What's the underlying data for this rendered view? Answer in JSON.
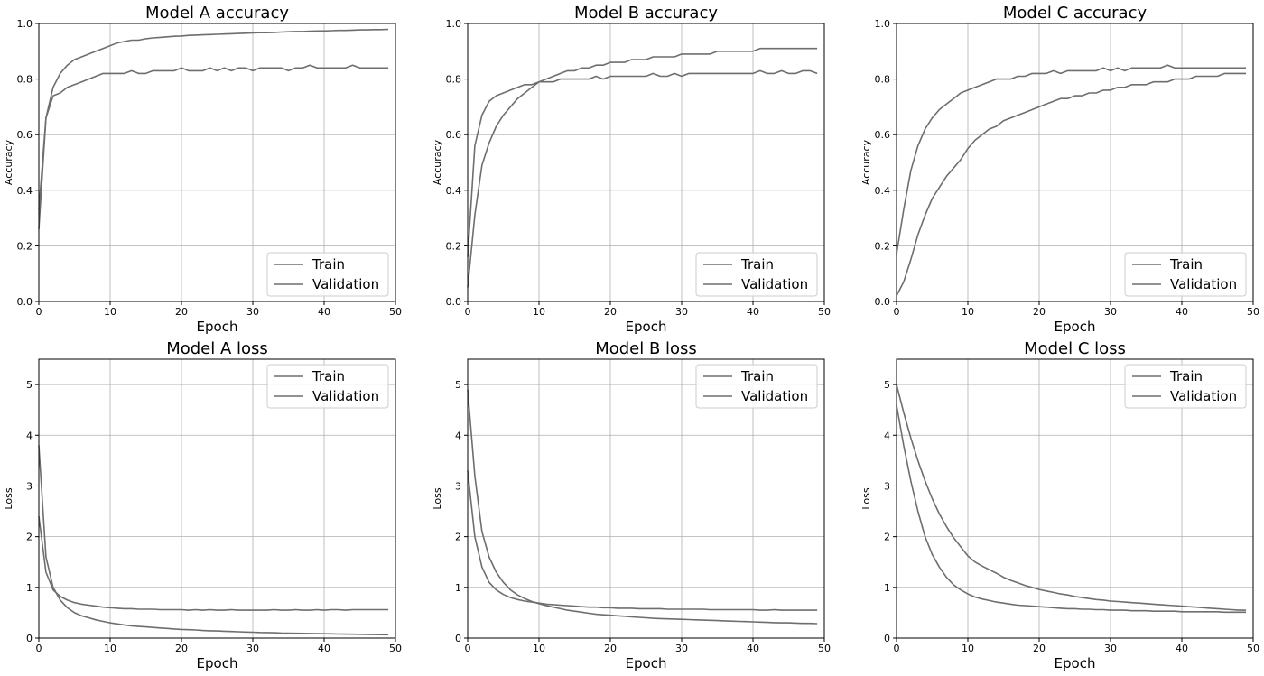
{
  "figure": {
    "layout": "2x3 grid of line charts",
    "line_color": "#6e6e6e",
    "grid_color": "#b0b0b0"
  },
  "chart_data": [
    {
      "type": "line",
      "title": "Model A accuracy",
      "xlabel": "Epoch",
      "ylabel": "Accuracy",
      "xlim": [
        0,
        50
      ],
      "ylim": [
        0,
        1.0
      ],
      "xticks": [
        0,
        10,
        20,
        30,
        40,
        50
      ],
      "yticks": [
        0.0,
        0.2,
        0.4,
        0.6,
        0.8,
        1.0
      ],
      "tick_decimals": 1,
      "grid": true,
      "legend": {
        "position": "bottom-right",
        "entries": [
          "Train",
          "Validation"
        ]
      },
      "series": [
        {
          "name": "Train",
          "x_start": 0,
          "x_step": 1,
          "values": [
            0.26,
            0.66,
            0.77,
            0.82,
            0.85,
            0.87,
            0.88,
            0.89,
            0.9,
            0.91,
            0.92,
            0.93,
            0.935,
            0.94,
            0.94,
            0.945,
            0.948,
            0.95,
            0.952,
            0.954,
            0.955,
            0.957,
            0.958,
            0.959,
            0.96,
            0.961,
            0.962,
            0.963,
            0.964,
            0.965,
            0.966,
            0.967,
            0.967,
            0.968,
            0.969,
            0.97,
            0.971,
            0.971,
            0.972,
            0.973,
            0.973,
            0.974,
            0.975,
            0.975,
            0.976,
            0.977,
            0.977,
            0.978,
            0.978,
            0.979
          ]
        },
        {
          "name": "Validation",
          "x_start": 0,
          "x_step": 1,
          "values": [
            0.33,
            0.66,
            0.74,
            0.75,
            0.77,
            0.78,
            0.79,
            0.8,
            0.81,
            0.82,
            0.82,
            0.82,
            0.82,
            0.83,
            0.82,
            0.82,
            0.83,
            0.83,
            0.83,
            0.83,
            0.84,
            0.83,
            0.83,
            0.83,
            0.84,
            0.83,
            0.84,
            0.83,
            0.84,
            0.84,
            0.83,
            0.84,
            0.84,
            0.84,
            0.84,
            0.83,
            0.84,
            0.84,
            0.85,
            0.84,
            0.84,
            0.84,
            0.84,
            0.84,
            0.85,
            0.84,
            0.84,
            0.84,
            0.84,
            0.84
          ]
        }
      ]
    },
    {
      "type": "line",
      "title": "Model B accuracy",
      "xlabel": "Epoch",
      "ylabel": "Accuracy",
      "xlim": [
        0,
        50
      ],
      "ylim": [
        0,
        1.0
      ],
      "xticks": [
        0,
        10,
        20,
        30,
        40,
        50
      ],
      "yticks": [
        0.0,
        0.2,
        0.4,
        0.6,
        0.8,
        1.0
      ],
      "tick_decimals": 1,
      "grid": true,
      "legend": {
        "position": "bottom-right",
        "entries": [
          "Train",
          "Validation"
        ]
      },
      "series": [
        {
          "name": "Train",
          "x_start": 0,
          "x_step": 1,
          "values": [
            0.05,
            0.31,
            0.49,
            0.57,
            0.63,
            0.67,
            0.7,
            0.73,
            0.75,
            0.77,
            0.79,
            0.8,
            0.81,
            0.82,
            0.83,
            0.83,
            0.84,
            0.84,
            0.85,
            0.85,
            0.86,
            0.86,
            0.86,
            0.87,
            0.87,
            0.87,
            0.88,
            0.88,
            0.88,
            0.88,
            0.89,
            0.89,
            0.89,
            0.89,
            0.89,
            0.9,
            0.9,
            0.9,
            0.9,
            0.9,
            0.9,
            0.91,
            0.91,
            0.91,
            0.91,
            0.91,
            0.91,
            0.91,
            0.91,
            0.91
          ]
        },
        {
          "name": "Validation",
          "x_start": 0,
          "x_step": 1,
          "values": [
            0.16,
            0.56,
            0.67,
            0.72,
            0.74,
            0.75,
            0.76,
            0.77,
            0.78,
            0.78,
            0.79,
            0.79,
            0.79,
            0.8,
            0.8,
            0.8,
            0.8,
            0.8,
            0.81,
            0.8,
            0.81,
            0.81,
            0.81,
            0.81,
            0.81,
            0.81,
            0.82,
            0.81,
            0.81,
            0.82,
            0.81,
            0.82,
            0.82,
            0.82,
            0.82,
            0.82,
            0.82,
            0.82,
            0.82,
            0.82,
            0.82,
            0.83,
            0.82,
            0.82,
            0.83,
            0.82,
            0.82,
            0.83,
            0.83,
            0.82
          ]
        }
      ]
    },
    {
      "type": "line",
      "title": "Model C accuracy",
      "xlabel": "Epoch",
      "ylabel": "Accuracy",
      "xlim": [
        0,
        50
      ],
      "ylim": [
        0,
        1.0
      ],
      "xticks": [
        0,
        10,
        20,
        30,
        40,
        50
      ],
      "yticks": [
        0.0,
        0.2,
        0.4,
        0.6,
        0.8,
        1.0
      ],
      "tick_decimals": 1,
      "grid": true,
      "legend": {
        "position": "bottom-right",
        "entries": [
          "Train",
          "Validation"
        ]
      },
      "series": [
        {
          "name": "Train",
          "x_start": 0,
          "x_step": 1,
          "values": [
            0.02,
            0.07,
            0.15,
            0.24,
            0.31,
            0.37,
            0.41,
            0.45,
            0.48,
            0.51,
            0.55,
            0.58,
            0.6,
            0.62,
            0.63,
            0.65,
            0.66,
            0.67,
            0.68,
            0.69,
            0.7,
            0.71,
            0.72,
            0.73,
            0.73,
            0.74,
            0.74,
            0.75,
            0.75,
            0.76,
            0.76,
            0.77,
            0.77,
            0.78,
            0.78,
            0.78,
            0.79,
            0.79,
            0.79,
            0.8,
            0.8,
            0.8,
            0.81,
            0.81,
            0.81,
            0.81,
            0.82,
            0.82,
            0.82,
            0.82
          ]
        },
        {
          "name": "Validation",
          "x_start": 0,
          "x_step": 1,
          "values": [
            0.17,
            0.33,
            0.47,
            0.56,
            0.62,
            0.66,
            0.69,
            0.71,
            0.73,
            0.75,
            0.76,
            0.77,
            0.78,
            0.79,
            0.8,
            0.8,
            0.8,
            0.81,
            0.81,
            0.82,
            0.82,
            0.82,
            0.83,
            0.82,
            0.83,
            0.83,
            0.83,
            0.83,
            0.83,
            0.84,
            0.83,
            0.84,
            0.83,
            0.84,
            0.84,
            0.84,
            0.84,
            0.84,
            0.85,
            0.84,
            0.84,
            0.84,
            0.84,
            0.84,
            0.84,
            0.84,
            0.84,
            0.84,
            0.84,
            0.84
          ]
        }
      ]
    },
    {
      "type": "line",
      "title": "Model A loss",
      "xlabel": "Epoch",
      "ylabel": "Loss",
      "xlim": [
        0,
        50
      ],
      "ylim": [
        0,
        5.5
      ],
      "xticks": [
        0,
        10,
        20,
        30,
        40,
        50
      ],
      "yticks": [
        0,
        1,
        2,
        3,
        4,
        5
      ],
      "tick_decimals": 0,
      "grid": true,
      "legend": {
        "position": "top-right",
        "entries": [
          "Train",
          "Validation"
        ]
      },
      "series": [
        {
          "name": "Train",
          "x_start": 0,
          "x_step": 1,
          "values": [
            3.8,
            1.6,
            1.0,
            0.75,
            0.6,
            0.5,
            0.44,
            0.4,
            0.36,
            0.33,
            0.3,
            0.28,
            0.26,
            0.24,
            0.23,
            0.22,
            0.21,
            0.2,
            0.19,
            0.18,
            0.17,
            0.165,
            0.16,
            0.15,
            0.145,
            0.14,
            0.135,
            0.13,
            0.125,
            0.12,
            0.115,
            0.11,
            0.108,
            0.105,
            0.1,
            0.098,
            0.095,
            0.092,
            0.09,
            0.088,
            0.085,
            0.083,
            0.08,
            0.078,
            0.076,
            0.074,
            0.072,
            0.07,
            0.068,
            0.066
          ]
        },
        {
          "name": "Validation",
          "x_start": 0,
          "x_step": 1,
          "values": [
            2.4,
            1.3,
            0.95,
            0.82,
            0.75,
            0.7,
            0.67,
            0.65,
            0.63,
            0.61,
            0.6,
            0.59,
            0.58,
            0.58,
            0.57,
            0.57,
            0.57,
            0.56,
            0.56,
            0.56,
            0.56,
            0.55,
            0.56,
            0.55,
            0.56,
            0.55,
            0.55,
            0.56,
            0.55,
            0.55,
            0.55,
            0.55,
            0.55,
            0.56,
            0.55,
            0.55,
            0.56,
            0.55,
            0.55,
            0.56,
            0.55,
            0.56,
            0.56,
            0.55,
            0.56,
            0.56,
            0.56,
            0.56,
            0.56,
            0.56
          ]
        }
      ]
    },
    {
      "type": "line",
      "title": "Model B loss",
      "xlabel": "Epoch",
      "ylabel": "Loss",
      "xlim": [
        0,
        50
      ],
      "ylim": [
        0,
        5.5
      ],
      "xticks": [
        0,
        10,
        20,
        30,
        40,
        50
      ],
      "yticks": [
        0,
        1,
        2,
        3,
        4,
        5
      ],
      "tick_decimals": 0,
      "grid": true,
      "legend": {
        "position": "top-right",
        "entries": [
          "Train",
          "Validation"
        ]
      },
      "series": [
        {
          "name": "Train",
          "x_start": 0,
          "x_step": 1,
          "values": [
            4.9,
            3.2,
            2.1,
            1.6,
            1.3,
            1.1,
            0.95,
            0.85,
            0.78,
            0.72,
            0.68,
            0.64,
            0.61,
            0.58,
            0.55,
            0.53,
            0.51,
            0.49,
            0.47,
            0.46,
            0.45,
            0.44,
            0.43,
            0.42,
            0.41,
            0.4,
            0.39,
            0.385,
            0.38,
            0.375,
            0.37,
            0.365,
            0.36,
            0.355,
            0.35,
            0.345,
            0.34,
            0.335,
            0.33,
            0.325,
            0.32,
            0.315,
            0.31,
            0.305,
            0.3,
            0.3,
            0.295,
            0.29,
            0.29,
            0.285
          ]
        },
        {
          "name": "Validation",
          "x_start": 0,
          "x_step": 1,
          "values": [
            3.3,
            2.0,
            1.4,
            1.1,
            0.95,
            0.86,
            0.8,
            0.76,
            0.73,
            0.71,
            0.69,
            0.67,
            0.66,
            0.65,
            0.64,
            0.63,
            0.62,
            0.61,
            0.61,
            0.6,
            0.6,
            0.59,
            0.59,
            0.59,
            0.58,
            0.58,
            0.58,
            0.58,
            0.57,
            0.57,
            0.57,
            0.57,
            0.57,
            0.57,
            0.56,
            0.56,
            0.56,
            0.56,
            0.56,
            0.56,
            0.56,
            0.55,
            0.55,
            0.56,
            0.55,
            0.55,
            0.55,
            0.55,
            0.55,
            0.55
          ]
        }
      ]
    },
    {
      "type": "line",
      "title": "Model C loss",
      "xlabel": "Epoch",
      "ylabel": "Loss",
      "xlim": [
        0,
        50
      ],
      "ylim": [
        0,
        5.5
      ],
      "xticks": [
        0,
        10,
        20,
        30,
        40,
        50
      ],
      "yticks": [
        0,
        1,
        2,
        3,
        4,
        5
      ],
      "tick_decimals": 0,
      "grid": true,
      "legend": {
        "position": "top-right",
        "entries": [
          "Train",
          "Validation"
        ]
      },
      "series": [
        {
          "name": "Train",
          "x_start": 0,
          "x_step": 1,
          "values": [
            5.0,
            4.45,
            3.95,
            3.5,
            3.1,
            2.75,
            2.45,
            2.2,
            1.98,
            1.8,
            1.62,
            1.5,
            1.42,
            1.35,
            1.28,
            1.2,
            1.14,
            1.09,
            1.04,
            1.0,
            0.96,
            0.93,
            0.9,
            0.87,
            0.85,
            0.82,
            0.8,
            0.78,
            0.76,
            0.75,
            0.73,
            0.72,
            0.71,
            0.7,
            0.69,
            0.68,
            0.67,
            0.66,
            0.65,
            0.64,
            0.63,
            0.62,
            0.61,
            0.6,
            0.59,
            0.58,
            0.57,
            0.56,
            0.55,
            0.55
          ]
        },
        {
          "name": "Validation",
          "x_start": 0,
          "x_step": 1,
          "values": [
            4.6,
            3.8,
            3.1,
            2.5,
            2.0,
            1.65,
            1.4,
            1.2,
            1.05,
            0.95,
            0.87,
            0.81,
            0.77,
            0.74,
            0.71,
            0.69,
            0.67,
            0.65,
            0.64,
            0.63,
            0.62,
            0.61,
            0.6,
            0.59,
            0.58,
            0.58,
            0.57,
            0.57,
            0.56,
            0.56,
            0.55,
            0.55,
            0.55,
            0.54,
            0.54,
            0.54,
            0.53,
            0.53,
            0.53,
            0.53,
            0.52,
            0.52,
            0.52,
            0.52,
            0.52,
            0.52,
            0.51,
            0.51,
            0.51,
            0.51
          ]
        }
      ]
    }
  ]
}
